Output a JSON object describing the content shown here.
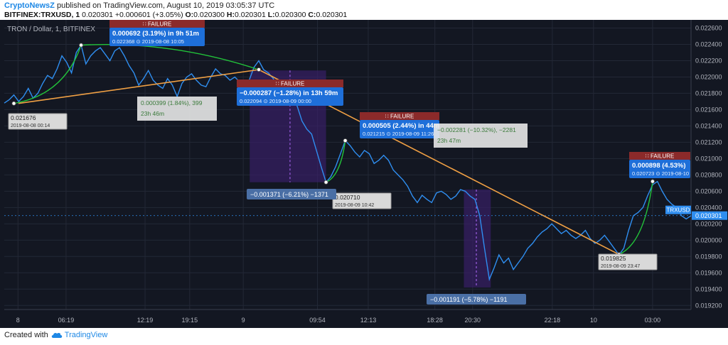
{
  "header": {
    "brand": "CryptoNewsZ",
    "published_text": "published on TradingView.com, August 10, 2019 03:05:37 UTC",
    "symbol_line": "BITFINEX:TRXUSD, 1",
    "last": "0.020301",
    "change": "+0.000601 (+3.05%)",
    "o_label": "O:",
    "o_value": "0.020300",
    "h_label": "H:",
    "h_value": "0.020301",
    "l_label": "L:",
    "l_value": "0.020300",
    "c_label": "C:",
    "c_value": "0.020301"
  },
  "footer": {
    "created_with": "Created with",
    "brand": "TradingView"
  },
  "colors": {
    "background": "#131722",
    "price_line": "#2f8ef0",
    "trend_line": "#f0a044",
    "gain_arc": "#22c43a",
    "range_fill": "#3b1f6b",
    "callout_blue": "#1e6fd9",
    "failure_red": "#8b2a2a",
    "axis_text": "#b2b5be"
  },
  "chart_data": {
    "type": "line",
    "title": "TRON / Dollar, 1, BITFINEX",
    "xlabel": "",
    "ylabel": "",
    "x_ticks": [
      "8",
      "06:19",
      "12:19",
      "19:15",
      "9",
      "09:54",
      "12:13",
      "18:28",
      "20:30",
      "22:18",
      "10",
      "03:00"
    ],
    "y_ticks": [
      "0.022600",
      "0.022400",
      "0.022200",
      "0.022000",
      "0.021800",
      "0.021600",
      "0.021400",
      "0.021200",
      "0.021000",
      "0.020800",
      "0.020600",
      "0.020400",
      "0.020200",
      "0.020000",
      "0.019800",
      "0.019600",
      "0.019400",
      "0.019200"
    ],
    "ylim": [
      0.01915,
      0.0227
    ],
    "grid": true,
    "series": [
      {
        "values": [
          0.02168,
          0.02172,
          0.02178,
          0.0217,
          0.02176,
          0.02186,
          0.02174,
          0.0218,
          0.02192,
          0.02202,
          0.02198,
          0.0221,
          0.02226,
          0.02218,
          0.02205,
          0.0223,
          0.02239,
          0.02216,
          0.02226,
          0.02232,
          0.02236,
          0.02228,
          0.0222,
          0.02232,
          0.02236,
          0.02226,
          0.02214,
          0.02205,
          0.0219,
          0.02198,
          0.02208,
          0.02196,
          0.0219,
          0.02186,
          0.02198,
          0.0219,
          0.02176,
          0.02192,
          0.022,
          0.02204,
          0.02196,
          0.0219,
          0.02188,
          0.022,
          0.0221,
          0.02204,
          0.02202,
          0.02196,
          0.022,
          0.02194,
          0.0219,
          0.02196,
          0.02212,
          0.0222,
          0.02209,
          0.02205,
          0.02198,
          0.02186,
          0.02176,
          0.02172,
          0.02178,
          0.02164,
          0.02146,
          0.02136,
          0.0213,
          0.0211,
          0.0209,
          0.02071,
          0.02078,
          0.0209,
          0.02106,
          0.02122,
          0.02116,
          0.02108,
          0.02102,
          0.0211,
          0.02106,
          0.02094,
          0.02098,
          0.02104,
          0.02098,
          0.02086,
          0.0208,
          0.02074,
          0.02066,
          0.02054,
          0.02046,
          0.02055,
          0.0205,
          0.02046,
          0.02058,
          0.0206,
          0.02056,
          0.0205,
          0.02054,
          0.02062,
          0.0206,
          0.02054,
          0.0205,
          0.0203,
          0.0199,
          0.01952,
          0.01966,
          0.01982,
          0.01972,
          0.01978,
          0.01964,
          0.01972,
          0.0198,
          0.0199,
          0.01996,
          0.02004,
          0.0201,
          0.02014,
          0.0202,
          0.02014,
          0.02008,
          0.02012,
          0.02006,
          0.02002,
          0.02006,
          0.02012,
          0.02002,
          0.01996,
          0.02,
          0.02006,
          0.01998,
          0.0199,
          0.01982,
          0.0199,
          0.02012,
          0.0203,
          0.02034,
          0.0204,
          0.02055,
          0.02068,
          0.02072,
          0.0206,
          0.0205,
          0.02044,
          0.0204,
          0.0203,
          0.02026,
          0.0203
        ]
      }
    ],
    "last_price_label": "TRXUSD",
    "last_price_value": "0.020301",
    "point_labels": [
      {
        "value": "0.021676",
        "time": "2019-08-08 00:14"
      },
      {
        "value": "0.020710",
        "time": "2019-08-09 10:42"
      },
      {
        "value": "0.019825",
        "time": "2019-08-09 23:47"
      }
    ],
    "callouts": [
      {
        "failure": "FAILURE",
        "line1": "0.000692 (3.19%) in 9h 51m",
        "line2": "0.022368 ⊙ 2019-08-08 10:05"
      },
      {
        "failure": "FAILURE",
        "line1": "−0.000287 (−1.28%) in 13h 59m",
        "line2": "0.022094 ⊙ 2019-08-09 00:00"
      },
      {
        "failure": "FAILURE",
        "line1": "0.000505 (2.44%) in 44m",
        "line2": "0.021215 ⊙ 2019-08-09 11:26"
      },
      {
        "failure": "FAILURE",
        "line1": "0.000898 (4.53%)",
        "line2": "0.020723 ⊙ 2019-08-10"
      }
    ],
    "measure_boxes": [
      {
        "line1": "0.000399 (1.84%), 399",
        "line2": "23h 46m"
      },
      {
        "line1": "−0.002281 (−10.32%), −2281",
        "line2": "23h 47m"
      }
    ],
    "range_labels": [
      "−0.001371 (−6.21%) −1371",
      "−0.001191 (−5.78%) −1191"
    ]
  }
}
